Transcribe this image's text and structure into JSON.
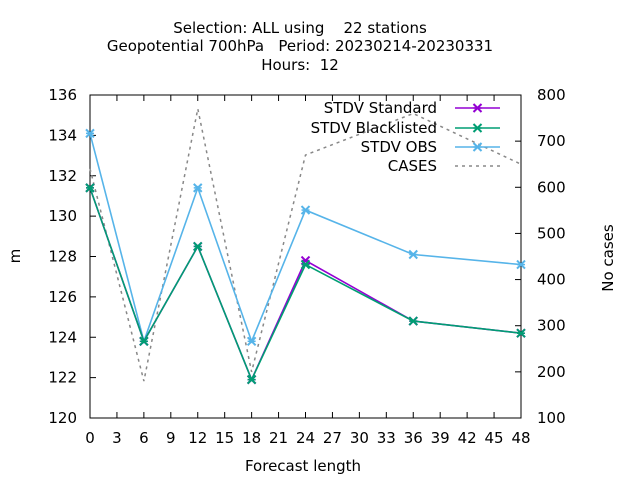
{
  "chart_data": {
    "type": "line",
    "title_lines": [
      "Selection: ALL using    22 stations",
      "Geopotential 700hPa   Period: 20230214-20230331",
      "Hours:  12"
    ],
    "xlabel": "Forecast length",
    "ylabel": "m",
    "y2label": "No cases",
    "xlim": [
      0,
      48
    ],
    "ylim": [
      120,
      136
    ],
    "y2lim": [
      100,
      800
    ],
    "xticks": [
      0,
      3,
      6,
      9,
      12,
      15,
      18,
      21,
      24,
      27,
      30,
      33,
      36,
      39,
      42,
      45,
      48
    ],
    "yticks": [
      120,
      122,
      124,
      126,
      128,
      130,
      132,
      134,
      136
    ],
    "y2ticks": [
      100,
      200,
      300,
      400,
      500,
      600,
      700,
      800
    ],
    "x": [
      0,
      6,
      12,
      18,
      24,
      36,
      48
    ],
    "legend_position": "top-right",
    "grid": false,
    "series": [
      {
        "name": "STDV Standard",
        "axis": "y1",
        "color": "#9400d3",
        "marker": "x",
        "dash": "none",
        "values": [
          131.4,
          123.8,
          128.5,
          121.9,
          127.8,
          124.8,
          124.2
        ]
      },
      {
        "name": "STDV Blacklisted",
        "axis": "y1",
        "color": "#009e73",
        "marker": "x",
        "dash": "none",
        "values": [
          131.4,
          123.8,
          128.5,
          121.9,
          127.6,
          124.8,
          124.2
        ]
      },
      {
        "name": "STDV OBS",
        "axis": "y1",
        "color": "#56b4e9",
        "marker": "x",
        "dash": "none",
        "values": [
          134.1,
          123.8,
          131.4,
          123.8,
          130.3,
          128.1,
          127.6
        ]
      },
      {
        "name": "CASES",
        "axis": "y2",
        "color": "#888888",
        "marker": "none",
        "dash": "3,4",
        "values": [
          640,
          180,
          770,
          200,
          670,
          760,
          650
        ]
      }
    ]
  }
}
